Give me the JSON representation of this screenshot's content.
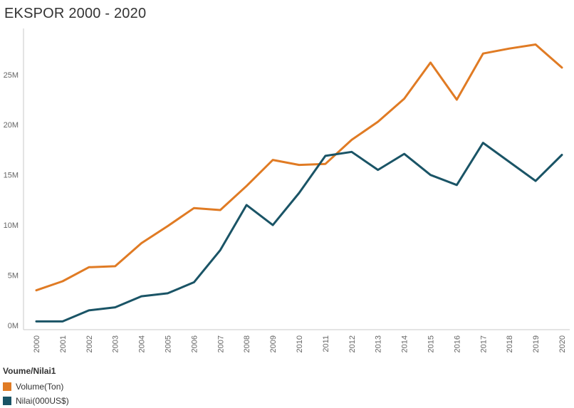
{
  "chart_data": {
    "type": "line",
    "title": "EKSPOR 2000 - 2020",
    "xlabel": "",
    "ylabel": "",
    "x": [
      "2000",
      "2001",
      "2002",
      "2003",
      "2004",
      "2005",
      "2006",
      "2007",
      "2008",
      "2009",
      "2010",
      "2011",
      "2012",
      "2013",
      "2014",
      "2015",
      "2016",
      "2017",
      "2018",
      "2019",
      "2020"
    ],
    "y_ticks": [
      0,
      5000000,
      10000000,
      15000000,
      20000000,
      25000000
    ],
    "y_tick_labels": [
      "0M",
      "5M",
      "10M",
      "15M",
      "20M",
      "25M"
    ],
    "ylim": [
      0,
      29600000
    ],
    "grid": false,
    "legend_title": "Voume/Nilai1",
    "legend_position": "bottom-left",
    "series": [
      {
        "name": "Volume(Ton)",
        "color": "#e07b24",
        "values": [
          3500000,
          4400000,
          5800000,
          5900000,
          8200000,
          9900000,
          11700000,
          11500000,
          13900000,
          16500000,
          16000000,
          16100000,
          18500000,
          20300000,
          22600000,
          26200000,
          22500000,
          27100000,
          27600000,
          28000000,
          25700000
        ]
      },
      {
        "name": "Nilai(000US$)",
        "color": "#1a5466",
        "values": [
          400000,
          400000,
          1500000,
          1800000,
          2900000,
          3200000,
          4300000,
          7500000,
          12000000,
          10000000,
          13200000,
          16900000,
          17300000,
          15500000,
          17100000,
          15000000,
          14000000,
          18200000,
          16300000,
          14400000,
          17000000
        ]
      }
    ]
  }
}
